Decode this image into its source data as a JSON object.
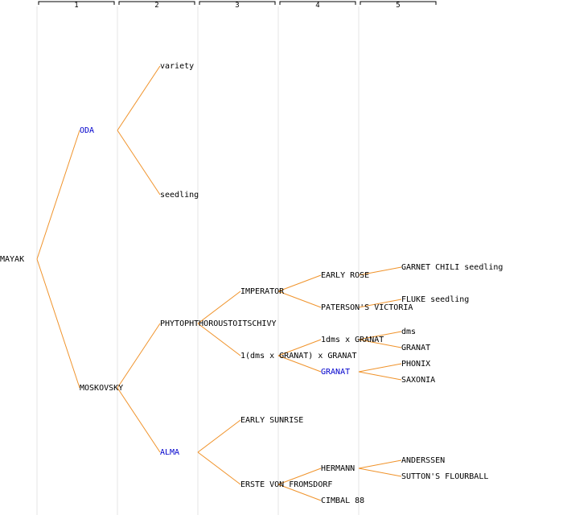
{
  "colors": {
    "edge": "#f0932b",
    "text": "#000000",
    "highlight": "#0000cc",
    "guide": "#e4e4e4"
  },
  "generations": [
    "1",
    "2",
    "3",
    "4",
    "5"
  ],
  "nodes": [
    {
      "id": "mayak",
      "label": "MAYAK",
      "gen": 0,
      "row": 15.5,
      "highlight": false
    },
    {
      "id": "oda",
      "label": "ODA",
      "gen": 1,
      "row": 7.5,
      "highlight": true
    },
    {
      "id": "moskovsky",
      "label": "MOSKOVSKY",
      "gen": 1,
      "row": 23.5,
      "highlight": false
    },
    {
      "id": "variety",
      "label": "variety",
      "gen": 2,
      "row": 3.5,
      "highlight": false
    },
    {
      "id": "seedling",
      "label": "seedling",
      "gen": 2,
      "row": 11.5,
      "highlight": false
    },
    {
      "id": "phyto",
      "label": "PHYTOPHTHOROUSTOITSCHIVY",
      "gen": 2,
      "row": 19.5,
      "highlight": false
    },
    {
      "id": "alma",
      "label": "ALMA",
      "gen": 2,
      "row": 27.5,
      "highlight": true
    },
    {
      "id": "imperator",
      "label": "IMPERATOR",
      "gen": 3,
      "row": 17.5,
      "highlight": false
    },
    {
      "id": "dms-granat",
      "label": "1(dms x GRANAT) x GRANAT",
      "gen": 3,
      "row": 21.5,
      "highlight": false
    },
    {
      "id": "early-sunrise",
      "label": "EARLY SUNRISE",
      "gen": 3,
      "row": 25.5,
      "highlight": false
    },
    {
      "id": "erste",
      "label": "ERSTE VON FROMSDORF",
      "gen": 3,
      "row": 29.5,
      "highlight": false
    },
    {
      "id": "early-rose",
      "label": "EARLY ROSE",
      "gen": 4,
      "row": 16.5,
      "highlight": false
    },
    {
      "id": "paterson",
      "label": "PATERSON'S VICTORIA",
      "gen": 4,
      "row": 18.5,
      "highlight": false
    },
    {
      "id": "dms-x-granat",
      "label": "1dms x GRANAT",
      "gen": 4,
      "row": 20.5,
      "highlight": false
    },
    {
      "id": "granat-4",
      "label": "GRANAT",
      "gen": 4,
      "row": 22.5,
      "highlight": true
    },
    {
      "id": "hermann",
      "label": "HERMANN",
      "gen": 4,
      "row": 28.5,
      "highlight": false
    },
    {
      "id": "cimbal",
      "label": "CIMBAL 88",
      "gen": 4,
      "row": 30.5,
      "highlight": false
    },
    {
      "id": "garnet",
      "label": "GARNET CHILI seedling",
      "gen": 5,
      "row": 16,
      "highlight": false
    },
    {
      "id": "fluke",
      "label": "FLUKE seedling",
      "gen": 5,
      "row": 18,
      "highlight": false
    },
    {
      "id": "dms",
      "label": "dms",
      "gen": 5,
      "row": 20,
      "highlight": false
    },
    {
      "id": "granat-5",
      "label": "GRANAT",
      "gen": 5,
      "row": 21,
      "highlight": false
    },
    {
      "id": "phonix",
      "label": "PHONIX",
      "gen": 5,
      "row": 22,
      "highlight": false
    },
    {
      "id": "saxonia",
      "label": "SAXONIA",
      "gen": 5,
      "row": 23,
      "highlight": false
    },
    {
      "id": "anderssen",
      "label": "ANDERSSEN",
      "gen": 5,
      "row": 28,
      "highlight": false
    },
    {
      "id": "suttons",
      "label": "SUTTON'S FLOURBALL",
      "gen": 5,
      "row": 29,
      "highlight": false
    }
  ],
  "edges": [
    [
      "mayak",
      "oda"
    ],
    [
      "mayak",
      "moskovsky"
    ],
    [
      "oda",
      "variety"
    ],
    [
      "oda",
      "seedling"
    ],
    [
      "moskovsky",
      "phyto"
    ],
    [
      "moskovsky",
      "alma"
    ],
    [
      "phyto",
      "imperator"
    ],
    [
      "phyto",
      "dms-granat"
    ],
    [
      "alma",
      "early-sunrise"
    ],
    [
      "alma",
      "erste"
    ],
    [
      "imperator",
      "early-rose"
    ],
    [
      "imperator",
      "paterson"
    ],
    [
      "dms-granat",
      "dms-x-granat"
    ],
    [
      "dms-granat",
      "granat-4"
    ],
    [
      "erste",
      "hermann"
    ],
    [
      "erste",
      "cimbal"
    ],
    [
      "early-rose",
      "garnet"
    ],
    [
      "paterson",
      "fluke"
    ],
    [
      "dms-x-granat",
      "dms"
    ],
    [
      "dms-x-granat",
      "granat-5"
    ],
    [
      "granat-4",
      "phonix"
    ],
    [
      "granat-4",
      "saxonia"
    ],
    [
      "hermann",
      "anderssen"
    ],
    [
      "hermann",
      "suttons"
    ]
  ]
}
